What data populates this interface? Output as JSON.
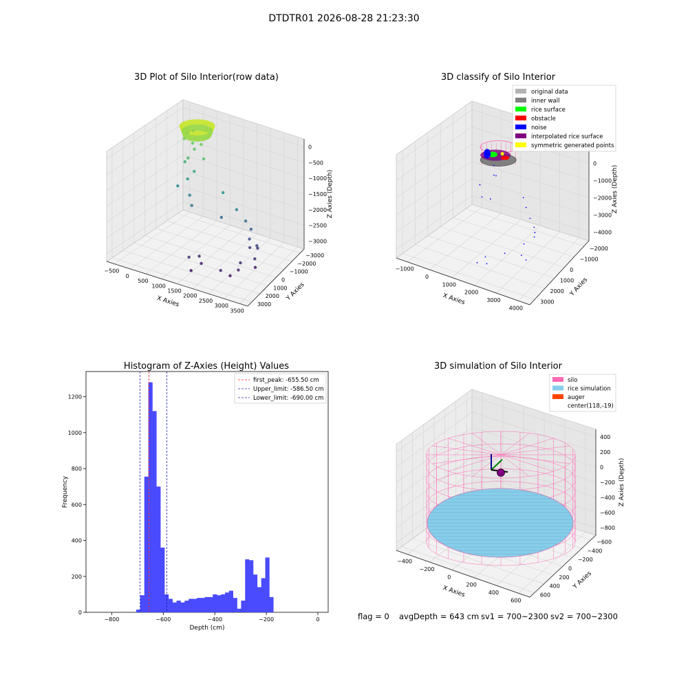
{
  "figure": {
    "suptitle": "DTDTR01 2026-08-28 21:23:30",
    "footer": {
      "flag": "flag = 0",
      "avg_depth": "avgDepth = 643 cm",
      "sv1": "sv1 = 700~2300",
      "sv2": "sv2 = 700~2300"
    }
  },
  "chart_data": [
    {
      "type": "scatter",
      "projection": "3d",
      "title": "3D Plot of Silo Interior(row data)",
      "xlabel": "X Axies",
      "ylabel": "Y Axies",
      "zlabel": "Z Axies (Depth)",
      "xlim": [
        -600,
        3600
      ],
      "ylim": [
        -3100,
        3100
      ],
      "zlim": [
        -3500,
        200
      ],
      "xticks": [
        "−500",
        "0",
        "500",
        "1000",
        "1500",
        "2000",
        "2500",
        "3000",
        "3500"
      ],
      "yticks": [
        "−3000",
        "−2000",
        "−1000",
        "0",
        "1000",
        "2000",
        "3000"
      ],
      "zticks": [
        "0",
        "−500",
        "−1000",
        "−1500",
        "−2000",
        "−2500",
        "−3000"
      ],
      "grid": true,
      "colormap": "viridis",
      "points": [
        {
          "x": -100,
          "y": 2200,
          "z": -350
        },
        {
          "x": 0,
          "y": 2100,
          "z": -450
        },
        {
          "x": 100,
          "y": 2300,
          "z": -400
        },
        {
          "x": -50,
          "y": 1900,
          "z": -600
        },
        {
          "x": 200,
          "y": 2000,
          "z": -700
        },
        {
          "x": 350,
          "y": 1800,
          "z": -800
        },
        {
          "x": 500,
          "y": 2000,
          "z": -650
        },
        {
          "x": 300,
          "y": 1400,
          "z": -1000
        },
        {
          "x": 150,
          "y": 1500,
          "z": -1200
        },
        {
          "x": 600,
          "y": 1200,
          "z": -1300
        },
        {
          "x": 800,
          "y": 1500,
          "z": -900
        },
        {
          "x": 500,
          "y": 900,
          "z": -1500
        },
        {
          "x": 200,
          "y": 800,
          "z": -1800
        },
        {
          "x": 700,
          "y": 600,
          "z": -1900
        },
        {
          "x": 900,
          "y": 300,
          "z": -2100
        },
        {
          "x": 1600,
          "y": 1200,
          "z": -1700
        },
        {
          "x": 2200,
          "y": 900,
          "z": -2000
        },
        {
          "x": 1800,
          "y": 600,
          "z": -2300
        },
        {
          "x": 2600,
          "y": 700,
          "z": -2200
        },
        {
          "x": 2900,
          "y": 300,
          "z": -2600
        },
        {
          "x": 3000,
          "y": 100,
          "z": -2800
        },
        {
          "x": 3200,
          "y": 200,
          "z": -2700
        },
        {
          "x": 3300,
          "y": -200,
          "z": -3000
        },
        {
          "x": 2700,
          "y": 900,
          "z": -2500
        },
        {
          "x": 3100,
          "y": 500,
          "z": -2900
        },
        {
          "x": 1800,
          "y": -1200,
          "z": -3100
        },
        {
          "x": 2000,
          "y": -1500,
          "z": -3200
        },
        {
          "x": 1700,
          "y": -1800,
          "z": -3000
        },
        {
          "x": 1900,
          "y": -2100,
          "z": -3300
        },
        {
          "x": 2800,
          "y": -1800,
          "z": -3100
        },
        {
          "x": 3200,
          "y": -1300,
          "z": -3100
        },
        {
          "x": 3100,
          "y": -900,
          "z": -3000
        },
        {
          "x": 3400,
          "y": -400,
          "z": -3200
        },
        {
          "x": 3000,
          "y": -1500,
          "z": -3300
        }
      ],
      "surface_cluster": {
        "center_x": 100,
        "center_y": 2500,
        "center_z": -300,
        "color": "#c8e632"
      }
    },
    {
      "type": "scatter",
      "projection": "3d",
      "title": "3D classify of Silo Interior",
      "xlabel": "X Axies",
      "ylabel": "Y Axies",
      "zlabel": "Z Axies (Depth)",
      "xlim": [
        -1500,
        4500
      ],
      "ylim": [
        -3000,
        3000
      ],
      "zlim": [
        -4200,
        1200
      ],
      "xticks": [
        "−1000",
        "0",
        "1000",
        "2000",
        "3000",
        "4000"
      ],
      "yticks": [
        "−2000",
        "−1000",
        "0",
        "1000",
        "2000",
        "3000"
      ],
      "zticks": [
        "1000",
        "0",
        "−1000",
        "−2000",
        "−3000",
        "−4000"
      ],
      "grid": true,
      "legend": {
        "position": "top-right",
        "entries": [
          {
            "label": "original data",
            "color": "#b3b3b3"
          },
          {
            "label": "inner wall",
            "color": "#808080"
          },
          {
            "label": "rice surface",
            "color": "#00ff00"
          },
          {
            "label": "obstacle",
            "color": "#ff0000"
          },
          {
            "label": "noise",
            "color": "#0000ff"
          },
          {
            "label": "interpolated rice surface",
            "color": "#800080"
          },
          {
            "label": "symmetric generated points",
            "color": "#ffff00"
          }
        ]
      },
      "noise_points": [
        {
          "x": 400,
          "y": 1800,
          "z": -1000
        },
        {
          "x": 600,
          "y": 1500,
          "z": -1300
        },
        {
          "x": 900,
          "y": 1200,
          "z": -1100
        },
        {
          "x": 200,
          "y": 1000,
          "z": -1700
        },
        {
          "x": 500,
          "y": 700,
          "z": -2100
        },
        {
          "x": 1000,
          "y": 600,
          "z": -2000
        },
        {
          "x": 2300,
          "y": 1200,
          "z": -1800
        },
        {
          "x": 2700,
          "y": 800,
          "z": -2000
        },
        {
          "x": 3100,
          "y": 500,
          "z": -2300
        },
        {
          "x": 3500,
          "y": 200,
          "z": -2500
        },
        {
          "x": 3600,
          "y": 100,
          "z": -2700
        },
        {
          "x": 3700,
          "y": -100,
          "z": -2800
        },
        {
          "x": 3300,
          "y": -300,
          "z": -3200
        },
        {
          "x": 3500,
          "y": -800,
          "z": -3500
        },
        {
          "x": 3800,
          "y": -900,
          "z": -3600
        },
        {
          "x": 2100,
          "y": -1500,
          "z": -3700
        },
        {
          "x": 2300,
          "y": -1700,
          "z": -3900
        },
        {
          "x": 2000,
          "y": -2000,
          "z": -3800
        },
        {
          "x": 2900,
          "y": -1200,
          "z": -3400
        }
      ],
      "silo_center": {
        "x": 300,
        "y": 2300,
        "z": -800
      }
    },
    {
      "type": "bar",
      "title": "Histogram of Z-Axies (Height) Values",
      "xlabel": "Depth (cm)",
      "ylabel": "Frequency",
      "xlim": [
        -900,
        40
      ],
      "ylim": [
        0,
        1340
      ],
      "xticks": [
        -800,
        -600,
        -400,
        -200,
        0
      ],
      "xtick_labels": [
        "−800",
        "−600",
        "−400",
        "−200",
        "0"
      ],
      "yticks": [
        0,
        200,
        400,
        600,
        800,
        1000,
        1200
      ],
      "bar_color": "#4a4aff",
      "bins_start": -705,
      "bin_width": 15.65,
      "values": [
        15,
        95,
        755,
        1280,
        1120,
        700,
        360,
        100,
        75,
        55,
        65,
        55,
        65,
        75,
        75,
        80,
        80,
        85,
        85,
        100,
        95,
        100,
        110,
        120,
        80,
        20,
        65,
        295,
        290,
        210,
        140,
        190,
        305,
        85
      ],
      "vlines": [
        {
          "x": -655.5,
          "color": "#ff2020",
          "label": "first_peak: -655.50 cm"
        },
        {
          "x": -586.5,
          "color": "#2020b0",
          "label": "Upper_limit: -586.50 cm"
        },
        {
          "x": -690.0,
          "color": "#2020b0",
          "label": "Lower_limit: -690.00 cm"
        }
      ],
      "legend": {
        "position": "top-right"
      }
    },
    {
      "type": "scatter",
      "projection": "3d",
      "title": "3D simulation of Silo Interior",
      "xlabel": "X Axies",
      "ylabel": "Y Axies",
      "zlabel": "Z Axies (Depth)",
      "xlim": [
        -500,
        700
      ],
      "ylim": [
        -700,
        700
      ],
      "zlim": [
        -950,
        500
      ],
      "xticks": [
        "−400",
        "−200",
        "0",
        "200",
        "400",
        "600"
      ],
      "yticks": [
        "−600",
        "−400",
        "−200",
        "0",
        "200",
        "400",
        "600"
      ],
      "zticks": [
        "400",
        "200",
        "0",
        "−200",
        "−400",
        "−600",
        "−800"
      ],
      "grid": true,
      "legend": {
        "position": "top-right",
        "entries": [
          {
            "label": "silo",
            "color": "#ff69b4"
          },
          {
            "label": "rice simulation",
            "color": "#87ceeb"
          },
          {
            "label": "auger",
            "color": "#ff4500"
          },
          {
            "label": "center(118,-19)",
            "color": ""
          }
        ]
      },
      "silo_radius": 650,
      "silo_top_z": 0,
      "silo_bottom_z": -800,
      "rice_surface_z": -643,
      "center": {
        "x": 118,
        "y": -19
      }
    }
  ]
}
